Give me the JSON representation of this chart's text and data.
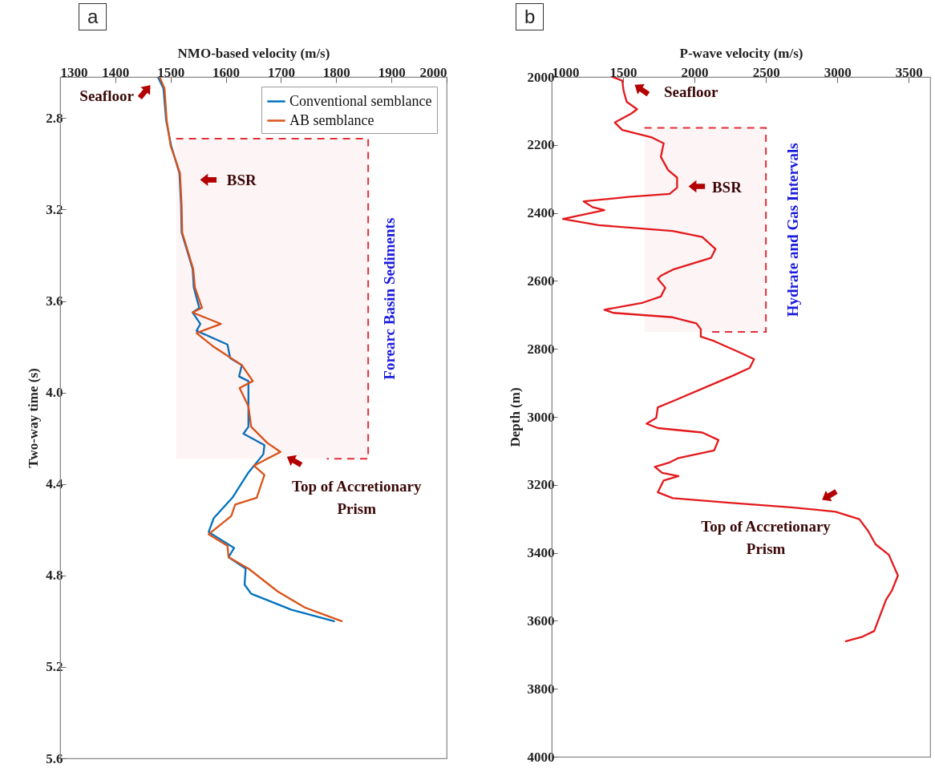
{
  "chart_data": [
    {
      "type": "line",
      "title": "a",
      "xlabel": "NMO-based velocity (m/s)",
      "ylabel": "Two-way time (s)",
      "xlim": [
        1300,
        2000
      ],
      "ylim": [
        5.6,
        2.62
      ],
      "xticks": [
        1300,
        1400,
        1500,
        1600,
        1700,
        1800,
        1900,
        2000
      ],
      "yticks": [
        2.8,
        3.2,
        3.6,
        {
          "value": 4,
          "label": "4.0"
        },
        4.4,
        4.8,
        5.2,
        5.6
      ],
      "legend": "top right",
      "series": [
        {
          "name": "Conventional semblance",
          "color": "#0072bd",
          "x": [
            1477,
            1487,
            1492,
            1501,
            1516,
            1519,
            1520,
            1530,
            1540,
            1542,
            1552,
            1540,
            1554,
            1547,
            1603,
            1608,
            1629,
            1624,
            1641,
            1641,
            1641,
            1632,
            1670,
            1668,
            1641,
            1612,
            1578,
            1569,
            1615,
            1605,
            1636,
            1634,
            1646,
            1719,
            1796
          ],
          "values": [
            2.62,
            2.67,
            2.81,
            2.92,
            3.04,
            3.18,
            3.3,
            3.38,
            3.46,
            3.54,
            3.63,
            3.65,
            3.7,
            3.73,
            3.79,
            3.85,
            3.88,
            3.93,
            3.95,
            4.06,
            4.15,
            4.18,
            4.23,
            4.27,
            4.35,
            4.46,
            4.55,
            4.61,
            4.68,
            4.72,
            4.77,
            4.84,
            4.88,
            4.95,
            5.0
          ]
        },
        {
          "name": "AB semblance",
          "color": "#d95319",
          "x": [
            1480,
            1489,
            1493,
            1500,
            1517,
            1520,
            1521,
            1531,
            1541,
            1544,
            1557,
            1540,
            1591,
            1547,
            1578,
            1629,
            1649,
            1625,
            1641,
            1646,
            1675,
            1699,
            1675,
            1651,
            1670,
            1663,
            1656,
            1617,
            1610,
            1569,
            1603,
            1605,
            1641,
            1694,
            1743,
            1810
          ],
          "values": [
            2.62,
            2.67,
            2.81,
            2.92,
            3.04,
            3.18,
            3.3,
            3.38,
            3.46,
            3.54,
            3.63,
            3.65,
            3.7,
            3.74,
            3.8,
            3.88,
            3.95,
            3.98,
            4.06,
            4.15,
            4.22,
            4.26,
            4.29,
            4.32,
            4.36,
            4.41,
            4.46,
            4.49,
            4.54,
            4.62,
            4.67,
            4.72,
            4.77,
            4.87,
            4.94,
            5.0
          ]
        }
      ],
      "bands": [
        {
          "axis": "y",
          "from": 2.89,
          "to": 4.29,
          "label": "Forearc Basin Sediments",
          "color": "#e0303a"
        }
      ],
      "annotations": [
        {
          "text": "Seafloor",
          "x": 1477,
          "y": 2.62
        },
        {
          "text": "BSR",
          "x": 1519,
          "y": 3.07
        },
        {
          "text": "Top of Accretionary\nPrism",
          "x": 1699,
          "y": 4.26
        }
      ]
    },
    {
      "type": "line",
      "title": "b",
      "xlabel": "P-wave velocity (m/s)",
      "ylabel": "Depth (m)",
      "xlim": [
        1000,
        3650
      ],
      "ylim": [
        4000,
        2000
      ],
      "xticks": [
        1000,
        1500,
        2000,
        2500,
        3000,
        3500
      ],
      "yticks": [
        2000,
        2200,
        2400,
        2600,
        2800,
        3000,
        3200,
        3400,
        3600,
        3800,
        4000
      ],
      "series": [
        {
          "color": "#e3191c",
          "x": [
            1425,
            1494,
            1504,
            1525,
            1598,
            1556,
            1442,
            1494,
            1701,
            1784,
            1764,
            1815,
            1878,
            1878,
            1826,
            1535,
            1224,
            1286,
            1369,
            1224,
            1079,
            1328,
            1847,
            2054,
            2147,
            2116,
            1847,
            1764,
            1743,
            1795,
            1764,
            1639,
            1369,
            1431,
            1847,
            2013,
            2044,
            2044,
            2137,
            2324,
            2417,
            2386,
            2262,
            2116,
            1847,
            1743,
            1732,
            1664,
            1743,
            2054,
            2168,
            2137,
            1888,
            1826,
            1722,
            1774,
            1888,
            1784,
            1743,
            1847,
            2262,
            2677,
            2988,
            3154,
            3216,
            3268,
            3361,
            3424,
            3382,
            3341,
            3258,
            3175,
            3060
          ],
          "values": [
            2000,
            2011,
            2042,
            2073,
            2095,
            2108,
            2134,
            2156,
            2178,
            2195,
            2235,
            2274,
            2296,
            2326,
            2344,
            2353,
            2366,
            2383,
            2392,
            2405,
            2418,
            2436,
            2453,
            2471,
            2506,
            2532,
            2567,
            2585,
            2594,
            2620,
            2646,
            2664,
            2685,
            2694,
            2707,
            2725,
            2742,
            2764,
            2777,
            2812,
            2830,
            2856,
            2880,
            2906,
            2954,
            2972,
            3003,
            3020,
            3033,
            3046,
            3068,
            3099,
            3121,
            3134,
            3147,
            3165,
            3174,
            3187,
            3222,
            3239,
            3253,
            3266,
            3279,
            3301,
            3336,
            3375,
            3406,
            3467,
            3511,
            3538,
            3630,
            3647,
            3660
          ]
        }
      ],
      "bands": [
        {
          "axis": "y",
          "from": 2150,
          "to": 2750,
          "label": "Hydrate and Gas Intervals",
          "color": "#e0303a"
        }
      ],
      "annotations": [
        {
          "text": "Seafloor",
          "x": 1494,
          "y": 2011
        },
        {
          "text": "BSR",
          "x": 1909,
          "y": 2322
        },
        {
          "text": "Top of Accretionary\nPrism",
          "x": 2988,
          "y": 3279
        }
      ]
    }
  ]
}
